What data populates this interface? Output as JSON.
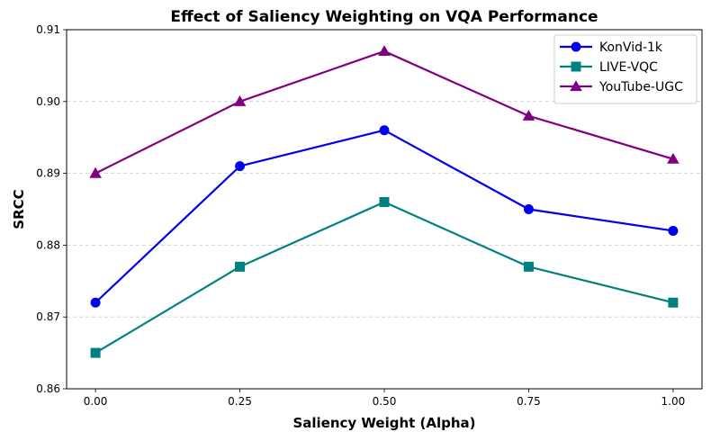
{
  "chart_data": {
    "type": "line",
    "title": "Effect of Saliency Weighting on VQA Performance",
    "xlabel": "Saliency Weight (Alpha)",
    "ylabel": "SRCC",
    "x": [
      0.0,
      0.25,
      0.5,
      0.75,
      1.0
    ],
    "x_tick_labels": [
      "0.00",
      "0.25",
      "0.50",
      "0.75",
      "1.00"
    ],
    "y_ticks": [
      0.86,
      0.87,
      0.88,
      0.89,
      0.9,
      0.91
    ],
    "y_tick_labels": [
      "0.86",
      "0.87",
      "0.88",
      "0.89",
      "0.90",
      "0.91"
    ],
    "xlim": [
      -0.05,
      1.05
    ],
    "ylim": [
      0.86,
      0.91
    ],
    "grid": "y-dashed",
    "legend_position": "top-right",
    "series": [
      {
        "name": "KonVid-1k",
        "color": "#0000ee",
        "marker": "circle",
        "values": [
          0.872,
          0.891,
          0.896,
          0.885,
          0.882
        ]
      },
      {
        "name": "LIVE-VQC",
        "color": "#008080",
        "marker": "square",
        "values": [
          0.865,
          0.877,
          0.886,
          0.877,
          0.872
        ]
      },
      {
        "name": "YouTube-UGC",
        "color": "#800080",
        "marker": "triangle",
        "values": [
          0.89,
          0.9,
          0.907,
          0.898,
          0.892
        ]
      }
    ]
  }
}
